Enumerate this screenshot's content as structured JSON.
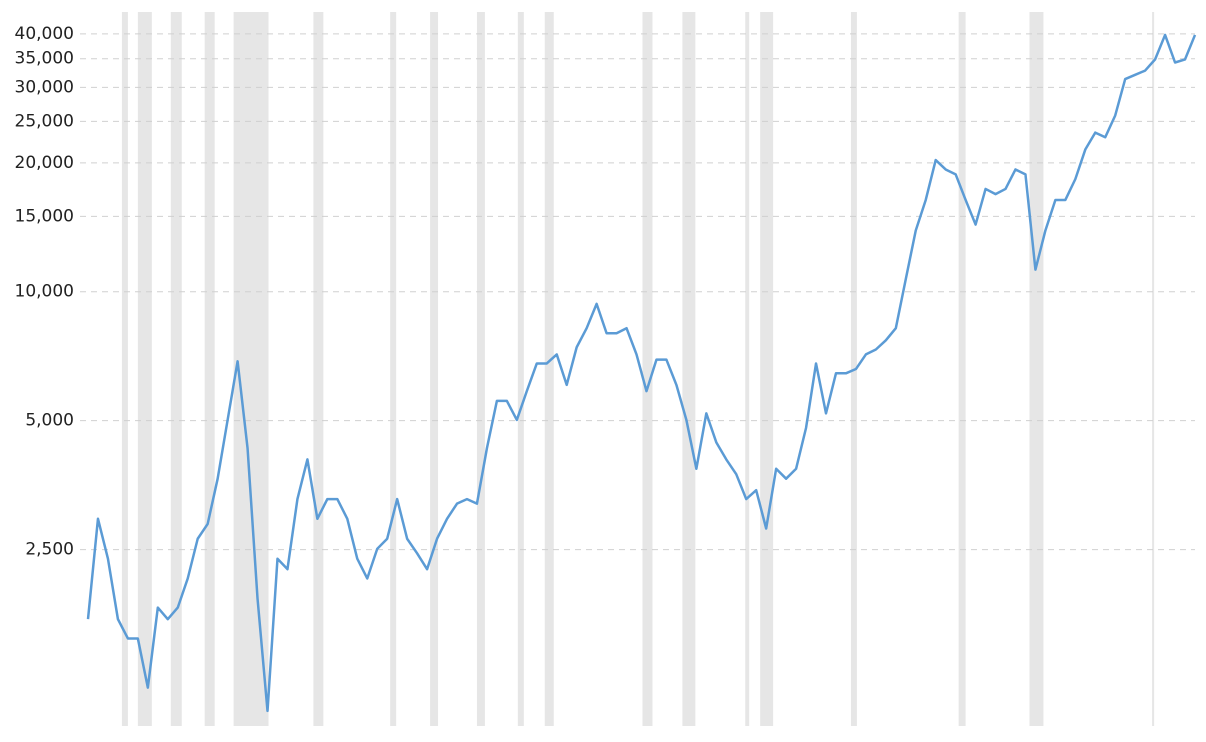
{
  "chart_data": {
    "type": "line",
    "log_scale": true,
    "grid": true,
    "grid_style": "dashed",
    "series": [
      {
        "color": "#5b9bd5",
        "values": [
          1720,
          2950,
          2380,
          1720,
          1550,
          1550,
          1190,
          1830,
          1720,
          1830,
          2140,
          2650,
          2870,
          3660,
          5020,
          6880,
          4310,
          1920,
          1050,
          2380,
          2250,
          3280,
          4060,
          2950,
          3280,
          3280,
          2950,
          2380,
          2140,
          2510,
          2650,
          3280,
          2650,
          2450,
          2250,
          2650,
          2950,
          3200,
          3280,
          3200,
          4310,
          5560,
          5560,
          5020,
          5860,
          6800,
          6800,
          7140,
          6060,
          7420,
          8220,
          9370,
          8000,
          8000,
          8220,
          7140,
          5860,
          6940,
          6940,
          6060,
          5020,
          3860,
          5200,
          4450,
          4060,
          3750,
          3280,
          3440,
          2800,
          3860,
          3660,
          3860,
          4810,
          6800,
          5200,
          6450,
          6450,
          6600,
          7140,
          7330,
          7700,
          8220,
          10700,
          13900,
          16380,
          20300,
          19300,
          18800,
          16380,
          14350,
          17380,
          16900,
          17380,
          19300,
          18800,
          11260,
          13900,
          16380,
          16380,
          18320,
          21480,
          23530,
          22950,
          25800,
          31380,
          32100,
          32840,
          34880,
          39780,
          34300,
          34880,
          39780
        ]
      }
    ],
    "bands_color": "#e6e6e6",
    "bands": [
      [
        3.4,
        4.0
      ],
      [
        5.0,
        6.4
      ],
      [
        8.3,
        9.4
      ],
      [
        11.7,
        12.7
      ],
      [
        14.6,
        18.1
      ],
      [
        22.6,
        23.6
      ],
      [
        30.3,
        30.9
      ],
      [
        34.3,
        35.1
      ],
      [
        39.0,
        39.8
      ],
      [
        43.1,
        43.7
      ],
      [
        45.8,
        46.7
      ],
      [
        55.6,
        56.6
      ],
      [
        59.6,
        60.9
      ],
      [
        65.9,
        66.3
      ],
      [
        67.4,
        68.7
      ],
      [
        76.5,
        77.1
      ],
      [
        87.3,
        88.0
      ],
      [
        94.4,
        95.8
      ],
      [
        106.7,
        106.9
      ]
    ],
    "ylim": [
      1000,
      45000
    ],
    "yticks": [
      {
        "value": 2500,
        "label": "2,500"
      },
      {
        "value": 5000,
        "label": "5,000"
      },
      {
        "value": 10000,
        "label": "10,000"
      },
      {
        "value": 15000,
        "label": "15,000"
      },
      {
        "value": 20000,
        "label": "20,000"
      },
      {
        "value": 25000,
        "label": "25,000"
      },
      {
        "value": 30000,
        "label": "30,000"
      },
      {
        "value": 35000,
        "label": "35,000"
      },
      {
        "value": 40000,
        "label": "40,000"
      }
    ]
  }
}
